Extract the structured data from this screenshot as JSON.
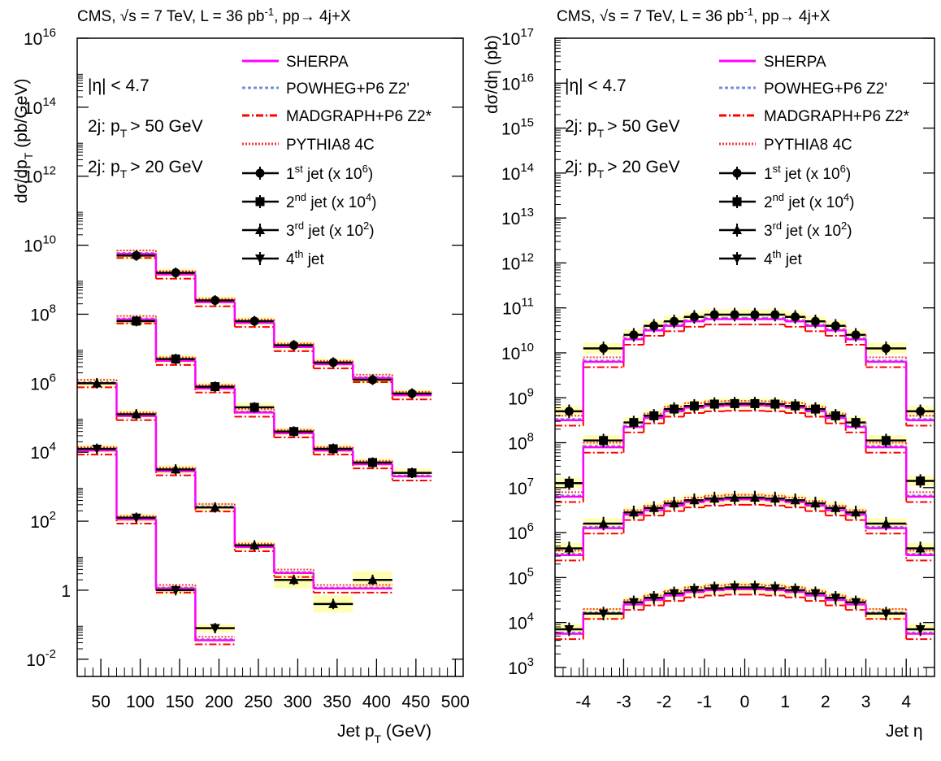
{
  "panels": [
    {
      "title_main": "CMS, ",
      "title_rest": "s = 7 TeV, L = 36 pb",
      "title_sup": "-1",
      "title_end": ", pp→ 4j+X",
      "ylabel": "dσ/dp",
      "ylabel_sub": "T",
      "ylabel_unit": " (pb/GeV)",
      "xlabel": "Jet p",
      "xlabel_sub": "T",
      "xlabel_unit": " (GeV)",
      "cuts": [
        "|η| < 4.7",
        "2j: p",
        "> 50 GeV",
        "2j: p",
        "> 20 GeV"
      ],
      "cut_sub": "T"
    },
    {
      "title_main": "CMS, ",
      "title_rest": "s = 7 TeV, L = 36 pb",
      "title_sup": "-1",
      "title_end": ", pp→ 4j+X",
      "ylabel": "dσ/dη (pb)",
      "xlabel": "Jet η",
      "cuts": [
        "|η| < 4.7",
        "2j: p",
        "> 50 GeV",
        "2j: p",
        "> 20 GeV"
      ],
      "cut_sub": "T"
    }
  ],
  "legend": {
    "sherpa": "SHERPA",
    "powheg": "POWHEG+P6 Z2'",
    "madgraph": "MADGRAPH+P6 Z2*",
    "pythia": "PYTHIA8 4C",
    "jets": [
      {
        "sup": "st",
        "pre": "1",
        "post": " jet (x 10",
        "exp": "6",
        "close": ")"
      },
      {
        "sup": "nd",
        "pre": "2",
        "post": " jet (x 10",
        "exp": "4",
        "close": ")"
      },
      {
        "sup": "rd",
        "pre": "3",
        "post": " jet (x 10",
        "exp": "2",
        "close": ")"
      },
      {
        "sup": "th",
        "pre": "4",
        "post": " jet",
        "exp": "",
        "close": ""
      }
    ]
  },
  "colors": {
    "sherpa": "#ff00ff",
    "powheg": "#6f8fd8",
    "madgraph": "#ff0000",
    "pythia": "#ff3333",
    "band": "#ffff99",
    "data": "#000000"
  },
  "chart_data": [
    {
      "type": "line",
      "log_y": true,
      "xlim": [
        20,
        510
      ],
      "ylim_exp": [
        -2.5,
        16
      ],
      "xticks": [
        50,
        100,
        150,
        200,
        250,
        300,
        350,
        400,
        450,
        500
      ],
      "yticks": [
        {
          "exp": 16,
          "label": "10",
          "sup": "16"
        },
        {
          "exp": 14,
          "label": "10",
          "sup": "14"
        },
        {
          "exp": 12,
          "label": "10",
          "sup": "12"
        },
        {
          "exp": 10,
          "label": "10",
          "sup": "10"
        },
        {
          "exp": 8,
          "label": "10",
          "sup": "8"
        },
        {
          "exp": 6,
          "label": "10",
          "sup": "6"
        },
        {
          "exp": 4,
          "label": "10",
          "sup": "4"
        },
        {
          "exp": 2,
          "label": "10",
          "sup": "2"
        },
        {
          "exp": 0,
          "label": "1",
          "sup": ""
        },
        {
          "exp": -2,
          "label": "10",
          "sup": "-2"
        }
      ],
      "bins": [
        20,
        70,
        120,
        170,
        220,
        270,
        320,
        370,
        420,
        470,
        520
      ],
      "series": [
        {
          "name": "1st jet (x 10^6)",
          "marker": "circle",
          "log10": [
            null,
            9.7,
            9.2,
            8.4,
            7.8,
            7.1,
            6.6,
            6.1,
            5.7,
            null
          ],
          "log10_mc": [
            null,
            9.75,
            9.15,
            8.35,
            7.75,
            7.05,
            6.55,
            6.15,
            5.65,
            null
          ]
        },
        {
          "name": "2nd jet (x 10^4)",
          "marker": "square",
          "log10": [
            null,
            7.8,
            6.7,
            5.9,
            5.3,
            4.6,
            4.1,
            3.7,
            3.4,
            null
          ],
          "log10_mc": [
            null,
            7.85,
            6.65,
            5.85,
            5.15,
            4.55,
            4.05,
            3.65,
            3.3,
            null
          ]
        },
        {
          "name": "3rd jet (x 10^2)",
          "marker": "triangle",
          "log10": [
            6.0,
            5.1,
            3.5,
            2.4,
            1.3,
            0.3,
            -0.4,
            0.3,
            null,
            null
          ],
          "log10_mc": [
            6.0,
            5.05,
            3.45,
            2.4,
            1.25,
            0.5,
            0.05,
            0.05,
            null,
            null
          ]
        },
        {
          "name": "4th jet",
          "marker": "invtriangle",
          "log10": [
            4.1,
            2.1,
            0.0,
            -1.1,
            null,
            null,
            null,
            null,
            null,
            null
          ],
          "log10_mc": [
            4.05,
            2.05,
            0.05,
            -1.45,
            null,
            null,
            null,
            null,
            null,
            null
          ]
        }
      ]
    },
    {
      "type": "line",
      "log_y": true,
      "xlim": [
        -4.7,
        4.7
      ],
      "ylim_exp": [
        2.8,
        17
      ],
      "xticks": [
        -4,
        -3,
        -2,
        -1,
        0,
        1,
        2,
        3,
        4
      ],
      "yticks": [
        {
          "exp": 17,
          "label": "10",
          "sup": "17"
        },
        {
          "exp": 16,
          "label": "10",
          "sup": "16"
        },
        {
          "exp": 15,
          "label": "10",
          "sup": "15"
        },
        {
          "exp": 14,
          "label": "10",
          "sup": "14"
        },
        {
          "exp": 13,
          "label": "10",
          "sup": "13"
        },
        {
          "exp": 12,
          "label": "10",
          "sup": "12"
        },
        {
          "exp": 11,
          "label": "10",
          "sup": "11"
        },
        {
          "exp": 10,
          "label": "10",
          "sup": "10"
        },
        {
          "exp": 9,
          "label": "10",
          "sup": "9"
        },
        {
          "exp": 8,
          "label": "10",
          "sup": "8"
        },
        {
          "exp": 7,
          "label": "10",
          "sup": "7"
        },
        {
          "exp": 6,
          "label": "10",
          "sup": "6"
        },
        {
          "exp": 5,
          "label": "10",
          "sup": "5"
        },
        {
          "exp": 4,
          "label": "10",
          "sup": "4"
        },
        {
          "exp": 3,
          "label": "10",
          "sup": "3"
        }
      ],
      "bins": [
        -4.7,
        -4.0,
        -3.0,
        -2.5,
        -2.0,
        -1.5,
        -1.0,
        -0.5,
        0.0,
        0.5,
        1.0,
        1.5,
        2.0,
        2.5,
        3.0,
        4.0,
        4.7
      ],
      "series": [
        {
          "name": "1st jet (x 10^6)",
          "marker": "circle",
          "log10": [
            8.7,
            10.1,
            10.4,
            10.6,
            10.7,
            10.8,
            10.85,
            10.85,
            10.85,
            10.85,
            10.8,
            10.7,
            10.6,
            10.4,
            10.1,
            8.7
          ],
          "log10_mc": [
            8.5,
            9.8,
            10.3,
            10.5,
            10.6,
            10.7,
            10.75,
            10.75,
            10.75,
            10.75,
            10.7,
            10.6,
            10.5,
            10.3,
            9.8,
            8.5
          ]
        },
        {
          "name": "2nd jet (x 10^4)",
          "marker": "square",
          "log10": [
            7.1,
            8.05,
            8.45,
            8.6,
            8.75,
            8.82,
            8.86,
            8.87,
            8.87,
            8.86,
            8.82,
            8.75,
            8.6,
            8.45,
            8.05,
            7.15
          ],
          "log10_mc": [
            6.8,
            7.9,
            8.35,
            8.55,
            8.7,
            8.78,
            8.82,
            8.83,
            8.83,
            8.82,
            8.78,
            8.7,
            8.55,
            8.35,
            7.9,
            6.8
          ]
        },
        {
          "name": "3rd jet (x 10^2)",
          "marker": "triangle",
          "log10": [
            5.65,
            6.2,
            6.45,
            6.55,
            6.65,
            6.72,
            6.76,
            6.78,
            6.78,
            6.76,
            6.72,
            6.65,
            6.55,
            6.45,
            6.2,
            5.65
          ],
          "log10_mc": [
            5.5,
            6.1,
            6.4,
            6.5,
            6.6,
            6.68,
            6.72,
            6.74,
            6.74,
            6.72,
            6.68,
            6.6,
            6.5,
            6.4,
            6.1,
            5.5
          ]
        },
        {
          "name": "4th jet",
          "marker": "invtriangle",
          "log10": [
            3.85,
            4.2,
            4.45,
            4.55,
            4.65,
            4.72,
            4.76,
            4.78,
            4.78,
            4.76,
            4.72,
            4.65,
            4.55,
            4.45,
            4.2,
            3.85
          ],
          "log10_mc": [
            3.75,
            4.2,
            4.4,
            4.5,
            4.6,
            4.68,
            4.72,
            4.74,
            4.74,
            4.72,
            4.68,
            4.6,
            4.5,
            4.4,
            4.2,
            3.75
          ]
        }
      ]
    }
  ]
}
